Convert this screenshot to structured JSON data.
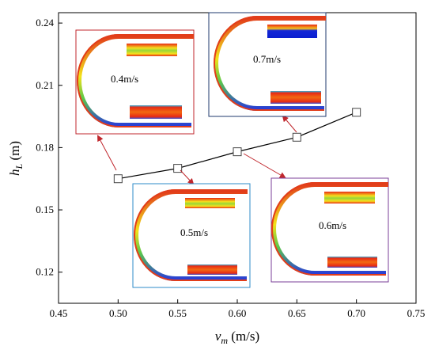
{
  "chart_data": {
    "type": "line",
    "x": [
      0.5,
      0.55,
      0.6,
      0.65,
      0.7
    ],
    "y": [
      0.165,
      0.17,
      0.178,
      0.185,
      0.197
    ],
    "xlim": [
      0.45,
      0.75
    ],
    "ylim": [
      0.105,
      0.245
    ],
    "xticks": [
      "0.45",
      "0.50",
      "0.55",
      "0.60",
      "0.65",
      "0.70",
      "0.75"
    ],
    "yticks": [
      "0.12",
      "0.15",
      "0.18",
      "0.21",
      "0.24"
    ],
    "xlabel_main": "v",
    "xlabel_sub": "m",
    "xlabel_unit": " (m/s)",
    "ylabel_main": "h",
    "ylabel_sub": "L",
    "ylabel_unit": " (m)",
    "marker": "open-square",
    "line_color": "#000000",
    "insets": [
      {
        "label": "0.4m/s",
        "border": "#c0272d",
        "points_to_x": 0.5
      },
      {
        "label": "0.7m/s",
        "border": "#1f3a6e",
        "points_to_x": 0.65
      },
      {
        "label": "0.5m/s",
        "border": "#2e8bc9",
        "points_to_x": 0.55
      },
      {
        "label": "0.6m/s",
        "border": "#7b3f98",
        "points_to_x": 0.6
      }
    ],
    "arrow_color": "#c0272d"
  }
}
